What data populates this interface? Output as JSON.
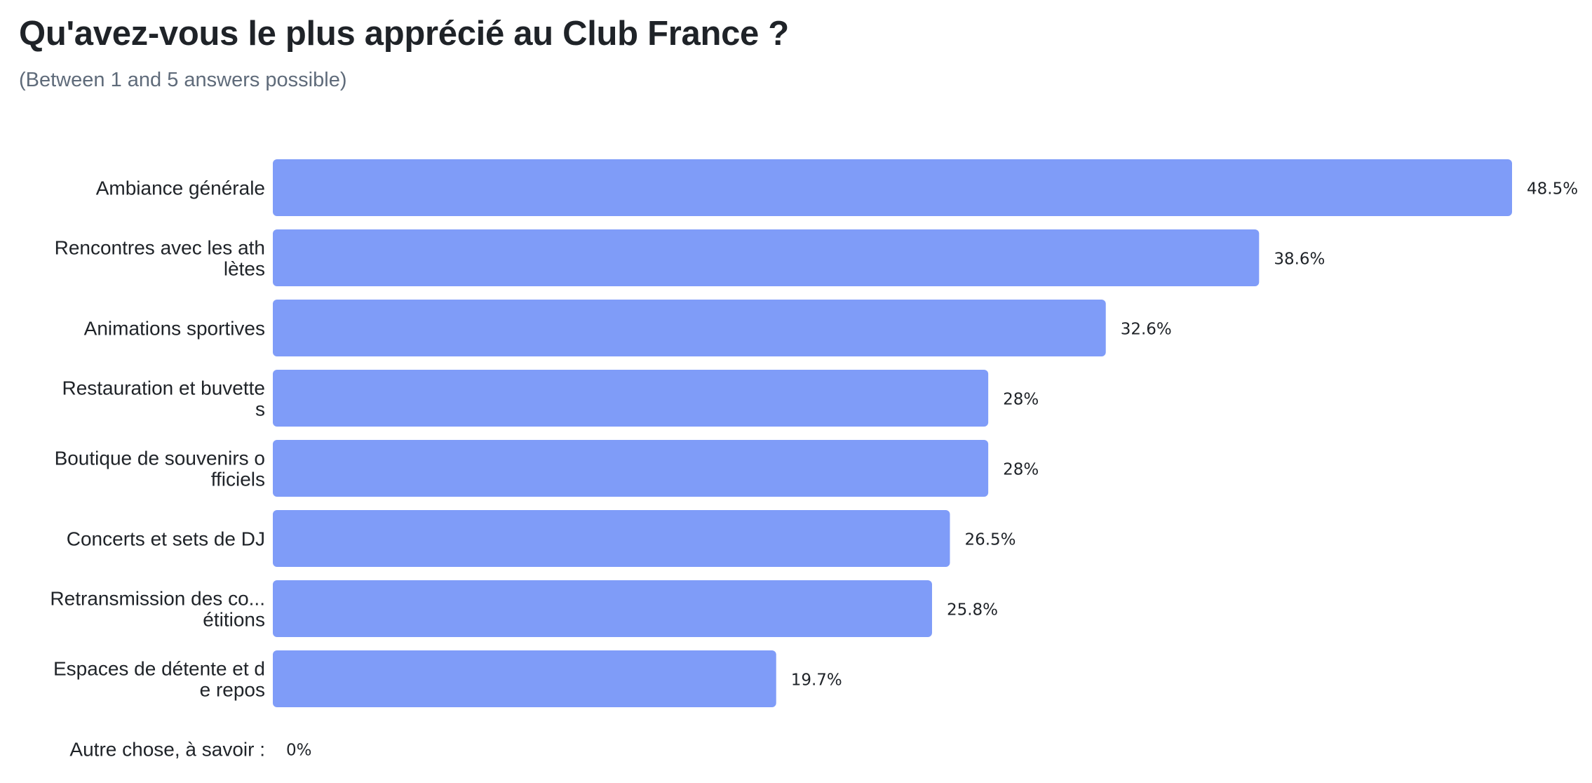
{
  "header": {
    "title": "Qu'avez-vous le plus apprécié au Club France ?",
    "subtitle": "(Between 1 and 5 answers possible)"
  },
  "colors": {
    "bar": "#7f9cf8",
    "text": "#1f2328",
    "subtitle": "#5f6b7a"
  },
  "chart_data": {
    "type": "bar",
    "orientation": "horizontal",
    "title": "Qu'avez-vous le plus apprécié au Club France ?",
    "subtitle": "(Between 1 and 5 answers possible)",
    "categories": [
      [
        "Ambiance générale"
      ],
      [
        "Rencontres avec les ath",
        "lètes"
      ],
      [
        "Animations sportives"
      ],
      [
        "Restauration et buvette",
        "s"
      ],
      [
        "Boutique de souvenirs o",
        "fficiels"
      ],
      [
        "Concerts et sets de DJ"
      ],
      [
        "Retransmission des co...",
        "étitions"
      ],
      [
        "Espaces de détente et d",
        "e repos"
      ],
      [
        "Autre chose, à savoir :"
      ]
    ],
    "values": [
      48.5,
      38.6,
      32.6,
      28,
      28,
      26.5,
      25.8,
      19.7,
      0
    ],
    "value_labels": [
      "48.5%",
      "38.6%",
      "32.6%",
      "28%",
      "28%",
      "26.5%",
      "25.8%",
      "19.7%",
      "0%"
    ],
    "unit": "%",
    "xlim": [
      0,
      48.5
    ],
    "grid": false,
    "legend": "none"
  }
}
